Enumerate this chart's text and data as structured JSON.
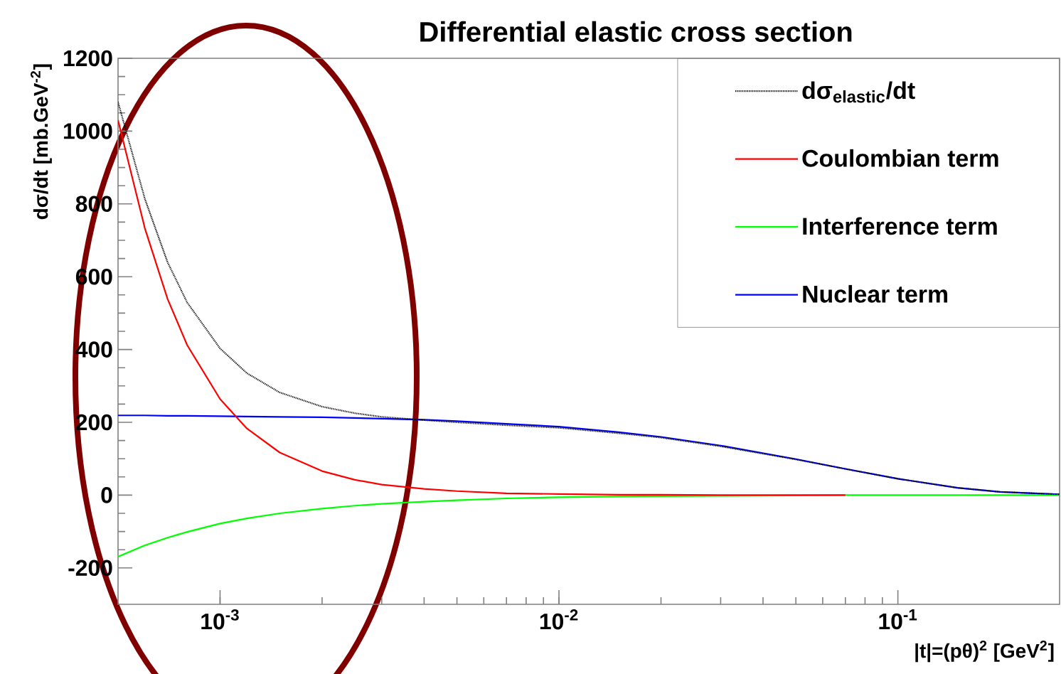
{
  "chart_data": {
    "type": "line",
    "title": "Differential elastic cross section",
    "xlabel": "|t|=(pθ)$^{2}$ [GeV$^{2}$]",
    "ylabel": "dσ/dt [mb.GeV$^{-2}$]",
    "log": "x",
    "xlim": [
      0.0005,
      0.3
    ],
    "ylim": [
      -300,
      1200
    ],
    "xticks": [
      {
        "value": 0.001,
        "label": "10$^{-3}$"
      },
      {
        "value": 0.01,
        "label": "10$^{-2}$"
      },
      {
        "value": 0.1,
        "label": "10$^{-1}$"
      }
    ],
    "yticks": [
      -200,
      0,
      200,
      400,
      600,
      800,
      1000,
      1200
    ],
    "x": [
      0.0005,
      0.0006,
      0.0007,
      0.0008,
      0.001,
      0.0012,
      0.0015,
      0.002,
      0.0025,
      0.003,
      0.004,
      0.005,
      0.007,
      0.01,
      0.015,
      0.02,
      0.03,
      0.05,
      0.07,
      0.1,
      0.15,
      0.2,
      0.3
    ],
    "grid": false,
    "legend": "top right",
    "marker": "none",
    "series": [
      {
        "name": "dσ$_{elastic}$/dt",
        "color": "#000000",
        "line_style": "dotted",
        "values": [
          1080,
          814,
          640,
          529,
          403,
          335,
          282,
          243,
          225,
          215,
          206,
          200,
          192,
          185,
          170,
          158,
          134,
          98,
          72,
          45,
          20,
          9,
          2
        ]
      },
      {
        "name": "Coulombian term",
        "color": "#ff0000",
        "values": [
          1030,
          733,
          539,
          412,
          264,
          183,
          117,
          66,
          42,
          29,
          17,
          11,
          5,
          3,
          1,
          1,
          0,
          0,
          0,
          null,
          null,
          null,
          null
        ]
      },
      {
        "name": "Interference term",
        "color": "#00ff00",
        "values": [
          -169,
          -138,
          -117,
          -101,
          -78,
          -64,
          -50,
          -37,
          -29,
          -24,
          -18,
          -14,
          -9,
          -6,
          -4,
          -3,
          -2,
          -1,
          0,
          0,
          0,
          0,
          0
        ]
      },
      {
        "name": "Nuclear term",
        "color": "#0000ff",
        "values": [
          219,
          219,
          218,
          218,
          217,
          216,
          215,
          214,
          212,
          210,
          207,
          203,
          196,
          188,
          173,
          160,
          136,
          99,
          72,
          45,
          20,
          9,
          2
        ]
      }
    ]
  }
}
